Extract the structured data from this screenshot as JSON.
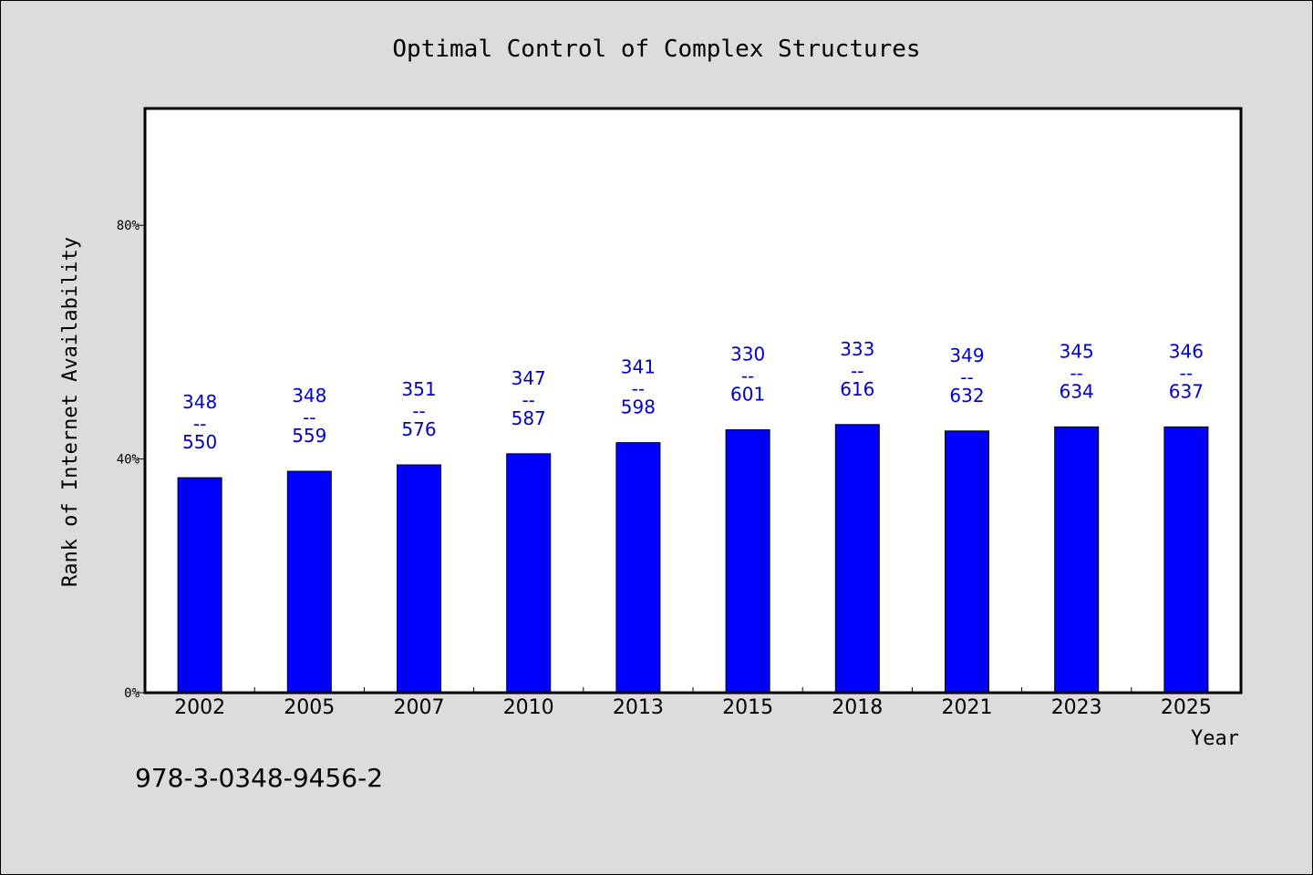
{
  "chart_data": {
    "type": "bar",
    "title": "Optimal Control of Complex Structures",
    "xlabel": "Year",
    "ylabel": "Rank of Internet Availability",
    "categories": [
      "2002",
      "2005",
      "2007",
      "2010",
      "2013",
      "2015",
      "2018",
      "2021",
      "2023",
      "2025"
    ],
    "values": [
      36.8,
      37.9,
      39.0,
      40.9,
      42.8,
      45.0,
      45.9,
      44.8,
      45.5,
      45.5
    ],
    "value_unit": "percent",
    "bar_labels": [
      {
        "top": "348",
        "sep": "--",
        "bottom": "550"
      },
      {
        "top": "348",
        "sep": "--",
        "bottom": "559"
      },
      {
        "top": "351",
        "sep": "--",
        "bottom": "576"
      },
      {
        "top": "347",
        "sep": "--",
        "bottom": "587"
      },
      {
        "top": "341",
        "sep": "--",
        "bottom": "598"
      },
      {
        "top": "330",
        "sep": "--",
        "bottom": "601"
      },
      {
        "top": "333",
        "sep": "--",
        "bottom": "616"
      },
      {
        "top": "349",
        "sep": "--",
        "bottom": "632"
      },
      {
        "top": "345",
        "sep": "--",
        "bottom": "634"
      },
      {
        "top": "346",
        "sep": "--",
        "bottom": "637"
      }
    ],
    "ylim": [
      0,
      100
    ],
    "yticks": [
      0,
      40,
      80
    ],
    "ytick_labels": [
      "0%",
      "40%",
      "80%"
    ],
    "grid": false,
    "legend": "none",
    "bar_color": "#0000ff",
    "label_color": "#0000cc",
    "background": "#dcdcdc",
    "plot_background": "#ffffff"
  },
  "footer": {
    "isbn": "978-3-0348-9456-2"
  }
}
